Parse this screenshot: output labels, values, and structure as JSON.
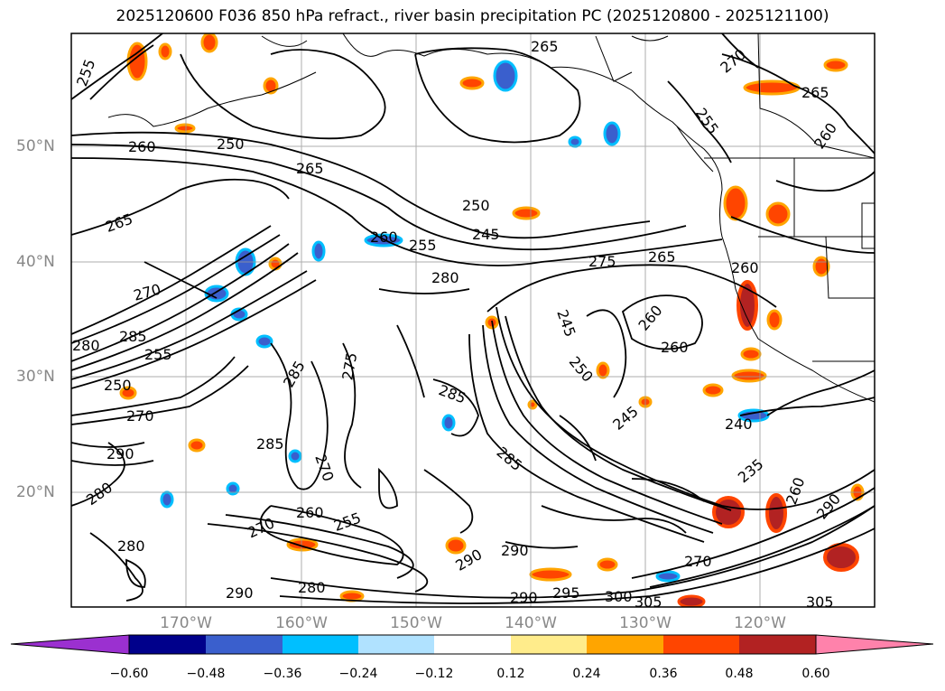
{
  "title": "2025120600 F036 850 hPa refract., river basin precipitation PC (2025120800 - 2025121100)",
  "lat_labels": [
    "50°N",
    "40°N",
    "30°N",
    "20°N"
  ],
  "lon_labels": [
    "170°W",
    "160°W",
    "150°W",
    "140°W",
    "130°W",
    "120°W"
  ],
  "colorbar": {
    "colors": [
      "#9b30d0",
      "#00008b",
      "#3a5fcd",
      "#00bfff",
      "#b0e2ff",
      "#ffffff",
      "#ffec8b",
      "#ffa500",
      "#ff4500",
      "#b22222",
      "#ff82ab"
    ],
    "tick_labels": [
      "−0.60",
      "−0.48",
      "−0.36",
      "−0.24",
      "−0.12",
      "0.12",
      "0.24",
      "0.36",
      "0.48",
      "0.60"
    ]
  },
  "contour_labels": [
    "255",
    "265",
    "270",
    "265",
    "260",
    "250",
    "265",
    "255",
    "260",
    "250",
    "245",
    "265",
    "260",
    "255",
    "270",
    "280",
    "275",
    "265",
    "260",
    "245",
    "260",
    "260",
    "280",
    "285",
    "255",
    "250",
    "270",
    "290",
    "275",
    "285",
    "285",
    "250",
    "245",
    "240",
    "285",
    "270",
    "285",
    "235",
    "260",
    "290",
    "280",
    "270",
    "260",
    "255",
    "290",
    "280",
    "290",
    "270",
    "290",
    "290",
    "295",
    "300",
    "305",
    "305",
    "280"
  ]
}
